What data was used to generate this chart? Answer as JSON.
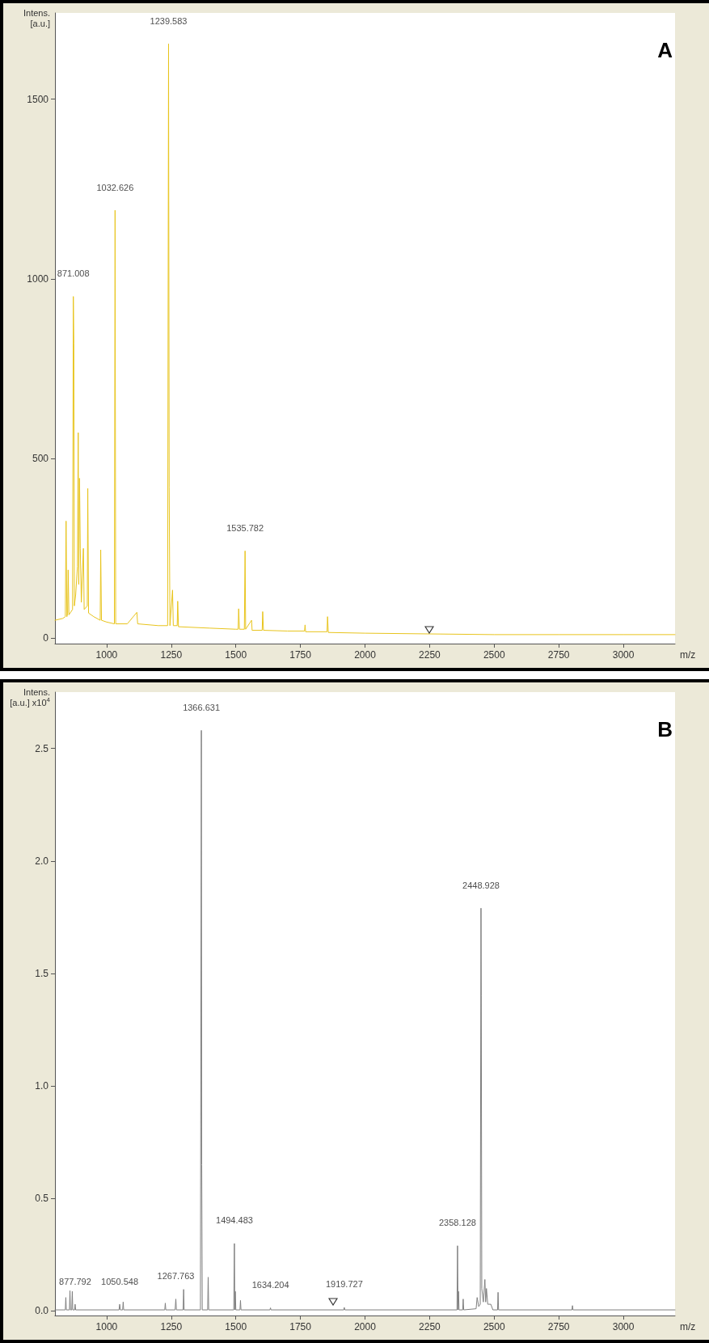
{
  "chart_data": [
    {
      "type": "line",
      "title": "A",
      "xlabel": "m/z",
      "ylabel": "Intens. [a.u.]",
      "xlim": [
        800,
        3200
      ],
      "ylim": [
        -15,
        1740
      ],
      "xticks": [
        1000,
        1250,
        1500,
        1750,
        2000,
        2250,
        2500,
        2750,
        3000
      ],
      "yticks": [
        0,
        500,
        1000,
        1500
      ],
      "grid": false,
      "marker": "none",
      "line_style": "solid",
      "series": [
        {
          "color": "#e8c41c",
          "x": [
            800,
            830,
            840,
            843,
            846,
            849,
            851,
            854,
            868,
            871,
            873,
            875,
            880,
            887,
            890,
            892,
            895,
            898,
            902,
            910,
            913,
            925,
            927,
            930,
            950,
            975,
            977,
            980,
            1000,
            1030,
            1032.6,
            1035,
            1080,
            1117,
            1120,
            1200,
            1236,
            1239.6,
            1242,
            1245,
            1255,
            1258,
            1273,
            1275,
            1278,
            1400,
            1500,
            1509,
            1511,
            1514,
            1533,
            1535.8,
            1538,
            1561,
            1563,
            1602,
            1604,
            1607,
            1700,
            1766,
            1768,
            1770,
            1853,
            1855,
            1858,
            2000,
            2250,
            2500,
            2750,
            3000,
            3200
          ],
          "values": [
            50,
            55,
            60,
            326,
            60,
            70,
            190,
            65,
            80,
            951,
            820,
            90,
            120,
            200,
            572,
            150,
            445,
            250,
            100,
            250,
            80,
            90,
            417,
            70,
            60,
            50,
            246,
            50,
            45,
            40,
            1191,
            40,
            40,
            72,
            40,
            35,
            35,
            1654,
            420,
            35,
            134,
            35,
            35,
            103,
            32,
            28,
            25,
            25,
            82,
            25,
            25,
            243,
            25,
            50,
            22,
            22,
            74,
            22,
            20,
            20,
            37,
            18,
            18,
            60,
            16,
            14,
            12,
            10,
            10,
            10,
            10
          ]
        }
      ],
      "annotations": [
        {
          "text": "871.008",
          "x": 871,
          "y": 951
        },
        {
          "text": "1032.626",
          "x": 1032.6,
          "y": 1191
        },
        {
          "text": "1239.583",
          "x": 1239.6,
          "y": 1654
        },
        {
          "text": "1535.782",
          "x": 1535.8,
          "y": 243
        }
      ]
    },
    {
      "type": "line",
      "title": "B",
      "xlabel": "m/z",
      "ylabel": "Intens. [a.u.] x10$^{4}$",
      "xlim": [
        800,
        3200
      ],
      "ylim": [
        -0.02,
        2.75
      ],
      "xticks": [
        1000,
        1250,
        1500,
        1750,
        2000,
        2250,
        2500,
        2750,
        3000
      ],
      "yticks": [
        {
          "value": 0,
          "label": "0.0"
        },
        {
          "value": 0.5,
          "label": "0.5"
        },
        {
          "value": 1,
          "label": "1.0"
        },
        {
          "value": 1.5,
          "label": "1.5"
        },
        {
          "value": 2,
          "label": "2.0"
        },
        {
          "value": 2.5,
          "label": "2.5"
        }
      ],
      "grid": false,
      "marker": "none",
      "line_style": "solid",
      "series": [
        {
          "color": "#7f7f7f",
          "x": [
            800,
            840,
            842,
            844,
            856,
            858,
            860,
            865,
            867,
            869,
            876,
            878,
            880,
            1048,
            1050.5,
            1053,
            1062,
            1064,
            1066,
            1225,
            1227,
            1229,
            1265,
            1267.8,
            1270,
            1296,
            1298,
            1300,
            1363,
            1366.6,
            1368,
            1370,
            1391,
            1393,
            1395,
            1492,
            1494.5,
            1496,
            1498,
            1500,
            1516,
            1518,
            1520,
            1632,
            1634.2,
            1636,
            1918,
            1919.7,
            1922,
            2356,
            2358.1,
            2360,
            2362,
            2364,
            2378,
            2380,
            2382,
            2430,
            2434,
            2440,
            2446,
            2448.9,
            2450,
            2452,
            2458,
            2464,
            2467,
            2470,
            2475,
            2487,
            2495,
            2513,
            2515,
            2517,
            2801,
            2803,
            2805,
            3200
          ],
          "values": [
            0.005,
            0.005,
            0.06,
            0.005,
            0.005,
            0.09,
            0.005,
            0.005,
            0.087,
            0.005,
            0.005,
            0.03,
            0.005,
            0.005,
            0.03,
            0.005,
            0.005,
            0.04,
            0.005,
            0.005,
            0.035,
            0.005,
            0.005,
            0.053,
            0.005,
            0.005,
            0.096,
            0.005,
            0.005,
            2.58,
            0.65,
            0.005,
            0.005,
            0.15,
            0.005,
            0.005,
            0.3,
            0.005,
            0.087,
            0.005,
            0.005,
            0.047,
            0.005,
            0.005,
            0.014,
            0.005,
            0.005,
            0.016,
            0.005,
            0.005,
            0.29,
            0.005,
            0.087,
            0.005,
            0.005,
            0.053,
            0.005,
            0.01,
            0.06,
            0.02,
            0.03,
            1.79,
            1.4,
            0.1,
            0.04,
            0.14,
            0.04,
            0.1,
            0.03,
            0.03,
            0.005,
            0.005,
            0.083,
            0.005,
            0.005,
            0.024,
            0.005,
            0.005
          ]
        }
      ],
      "annotations": [
        {
          "text": "877.792",
          "x": 878,
          "y": 0.03
        },
        {
          "text": "1050.548",
          "x": 1050.5,
          "y": 0.03
        },
        {
          "text": "1267.763",
          "x": 1267.8,
          "y": 0.053
        },
        {
          "text": "1366.631",
          "x": 1366.6,
          "y": 2.58
        },
        {
          "text": "1494.483",
          "x": 1494.5,
          "y": 0.3
        },
        {
          "text": "1634.204",
          "x": 1634.2,
          "y": 0.014
        },
        {
          "text": "1919.727",
          "x": 1919.7,
          "y": 0.016
        },
        {
          "text": "2358.128",
          "x": 2358.1,
          "y": 0.29
        },
        {
          "text": "2448.928",
          "x": 2448.9,
          "y": 1.79
        }
      ]
    }
  ]
}
